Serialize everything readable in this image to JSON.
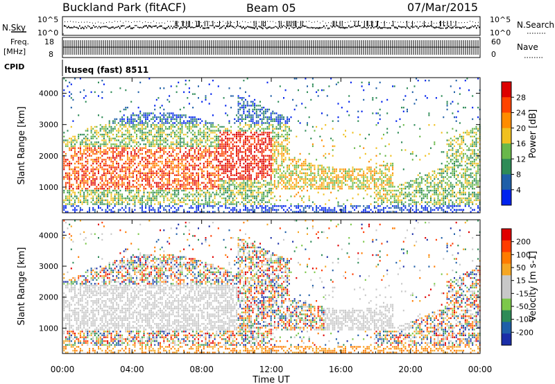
{
  "header": {
    "title": "Buckland Park (fitACF)",
    "beam": "Beam 05",
    "date": "07/Mar/2015"
  },
  "colors": {
    "power_scale": [
      "#0022ee",
      "#1f5fa8",
      "#2e8b57",
      "#69b84a",
      "#f0c020",
      "#ff8c00",
      "#ff4400",
      "#dd0000"
    ],
    "velocity_scale": [
      "#1a2ea8",
      "#1f5fa8",
      "#2e8b57",
      "#7cc84a",
      "#c8c8c8",
      "#c8c8c8",
      "#f5a623",
      "#ff7b00",
      "#ff3c00",
      "#e00000"
    ]
  },
  "chart_data": [
    {
      "type": "line",
      "panel": "noise",
      "left_label": "N.Sky",
      "right_label": "N.Search",
      "left_ticks": [
        "10^5",
        "10^0"
      ],
      "right_ticks": [
        "10^5",
        "10^0"
      ]
    },
    {
      "type": "line",
      "panel": "frequency",
      "left_label_1": "Freq.",
      "left_label_2": "[MHz]",
      "right_label": "Nave",
      "left_ticks": [
        "18",
        "8"
      ],
      "right_ticks": [
        "60",
        "0"
      ]
    },
    {
      "type": "table",
      "panel": "cpid",
      "label": "CPID",
      "text": "ltuseq (fast) 8511"
    },
    {
      "type": "heatmap",
      "panel": "power",
      "ylabel": "Slant Range [km]",
      "y_ticks": [
        "1000",
        "2000",
        "3000",
        "4000"
      ],
      "ylim": [
        180,
        4500
      ],
      "colorbar_label": "Power [dB]",
      "colorbar_ticks": [
        "4",
        "8",
        "12",
        "16",
        "20",
        "24",
        "28"
      ]
    },
    {
      "type": "heatmap",
      "panel": "velocity",
      "ylabel": "Slant Range [km]",
      "y_ticks": [
        "1000",
        "2000",
        "3000",
        "4000"
      ],
      "ylim": [
        180,
        4500
      ],
      "colorbar_label": "Velocity [m s-1]",
      "colorbar_ticks": [
        "200",
        "100",
        "50",
        "15",
        "-15",
        "-50",
        "-100",
        "-200"
      ],
      "xlabel": "Time UT",
      "x_ticks": [
        "00:00",
        "04:00",
        "08:00",
        "12:00",
        "16:00",
        "20:00",
        "00:00"
      ],
      "xlim": [
        0,
        24
      ]
    }
  ]
}
